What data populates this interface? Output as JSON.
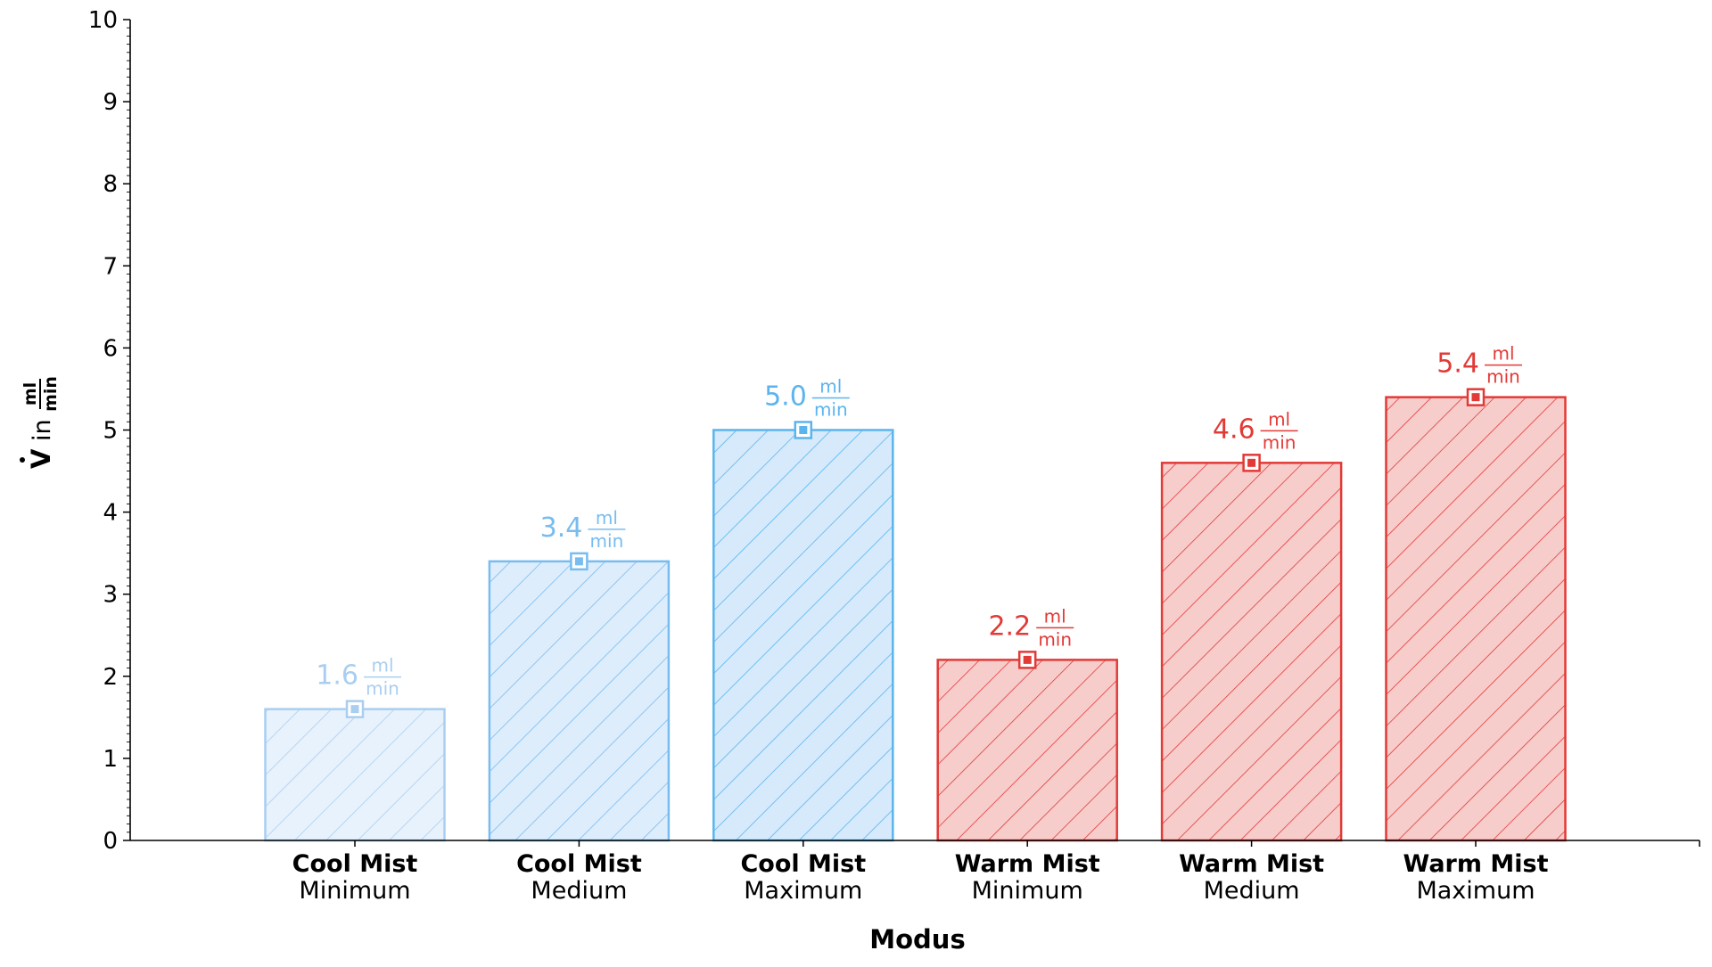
{
  "chart_data": {
    "type": "bar",
    "categories": [
      {
        "name": "Cool Mist",
        "sub": "Minimum"
      },
      {
        "name": "Cool Mist",
        "sub": "Medium"
      },
      {
        "name": "Cool Mist",
        "sub": "Maximum"
      },
      {
        "name": "Warm Mist",
        "sub": "Minimum"
      },
      {
        "name": "Warm Mist",
        "sub": "Medium"
      },
      {
        "name": "Warm Mist",
        "sub": "Maximum"
      }
    ],
    "values": [
      1.6,
      3.4,
      5.0,
      2.2,
      4.6,
      5.4
    ],
    "value_labels": [
      "1.6",
      "3.4",
      "5.0",
      "2.2",
      "4.6",
      "5.4"
    ],
    "value_unit": {
      "numerator": "ml",
      "denominator": "min"
    },
    "xlabel": "Modus",
    "ylabel": {
      "symbol": "V",
      "in": "in",
      "numerator": "ml",
      "denominator": "min"
    },
    "ylim": [
      0,
      10
    ],
    "yticks": [
      "0",
      "1",
      "2",
      "3",
      "4",
      "5",
      "6",
      "7",
      "8",
      "9",
      "10"
    ],
    "grid": false,
    "hatch": "diagonal",
    "colors": {
      "edge": [
        "#a9cef1",
        "#78bcf0",
        "#5bb4ee",
        "#e23a36",
        "#e23a36",
        "#e23a36"
      ],
      "fill": [
        "#e8f2fc",
        "#deedfb",
        "#d6eafb",
        "#f7cdcc",
        "#f7cdcc",
        "#f7cdcc"
      ],
      "label": [
        "#a9cef1",
        "#78bcf0",
        "#5bb4ee",
        "#e23a36",
        "#e23a36",
        "#e23a36"
      ]
    }
  }
}
